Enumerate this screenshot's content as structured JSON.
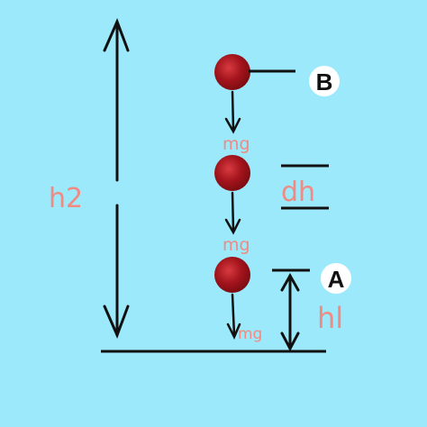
{
  "colors": {
    "background": "#9be9fb",
    "ball": "#a3141c",
    "ball_highlight": "#d83a40",
    "line": "#111111",
    "label_pink": "#f08a82"
  },
  "labels": {
    "h2": "h2",
    "h1": "hl",
    "dh": "dh",
    "point_a": "A",
    "point_b": "B",
    "mg_1": "mg",
    "mg_2": "mg",
    "mg_3": "mg"
  }
}
